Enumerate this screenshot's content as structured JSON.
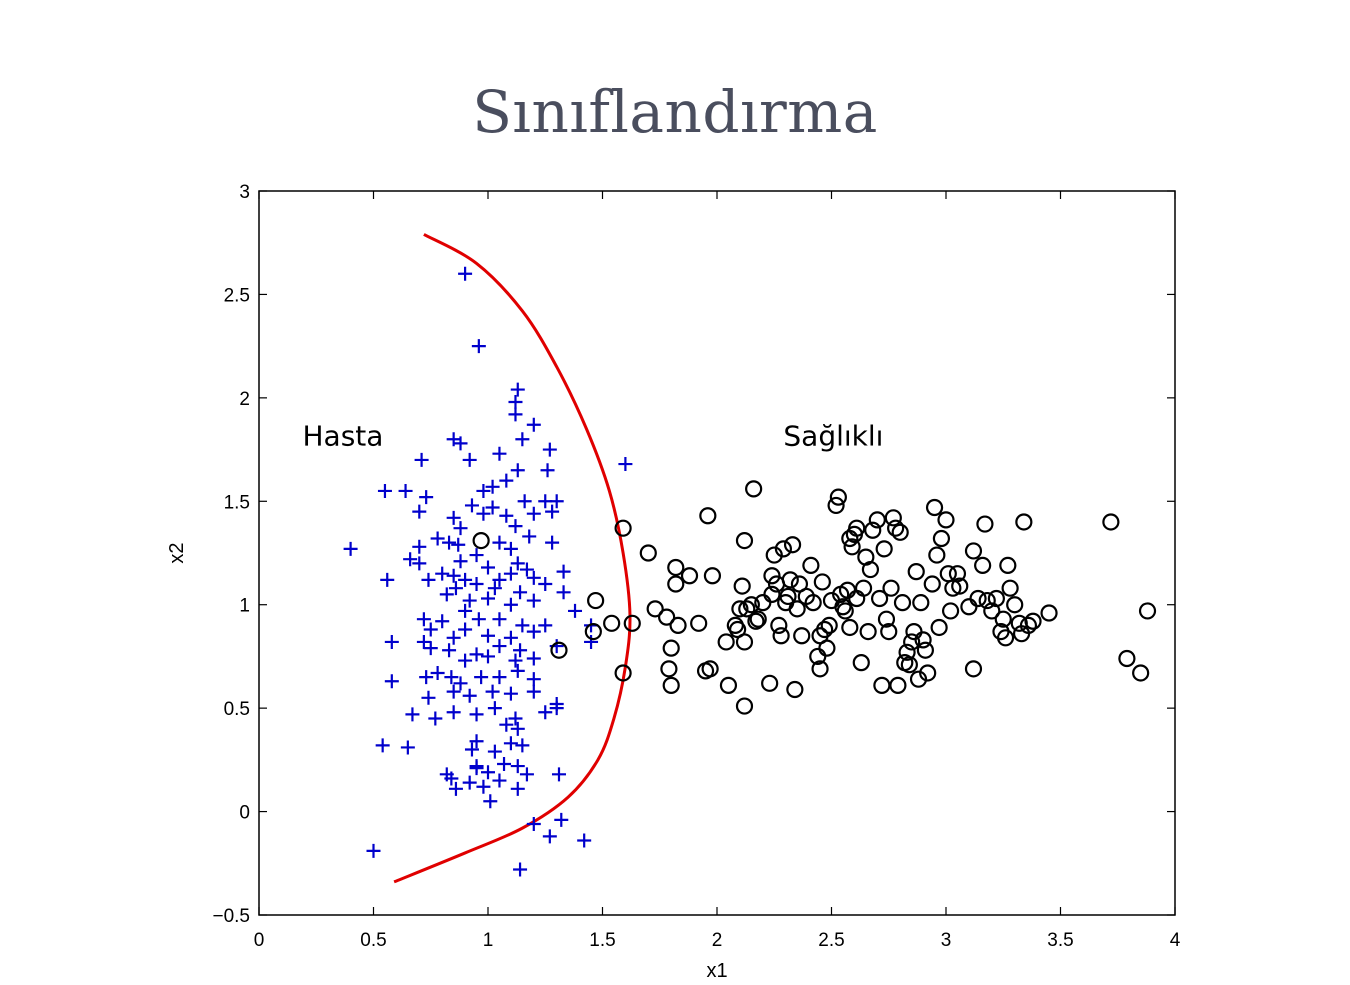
{
  "slide": {
    "title": "Sınıflandırma"
  },
  "chart_data": {
    "type": "scatter",
    "title": "",
    "xlabel": "x1",
    "ylabel": "x2",
    "xlim": [
      0,
      4
    ],
    "ylim": [
      -0.5,
      3
    ],
    "xticks": [
      0,
      0.5,
      1,
      1.5,
      2,
      2.5,
      3,
      3.5,
      4
    ],
    "yticks": [
      -0.5,
      0,
      0.5,
      1,
      1.5,
      2,
      2.5,
      3
    ],
    "xtick_labels": [
      "0",
      "0.5",
      "1",
      "1.5",
      "2",
      "2.5",
      "3",
      "3.5",
      "4"
    ],
    "ytick_labels": [
      "−0.5",
      "0",
      "0.5",
      "1",
      "1.5",
      "2",
      "2.5",
      "3"
    ],
    "grid": false,
    "annotations": [
      {
        "text": "Hasta",
        "x": 0.19,
        "y": 1.77
      },
      {
        "text": "Sağlıklı",
        "x": 2.29,
        "y": 1.77
      }
    ],
    "series": [
      {
        "marker": "plus",
        "color": "#0000cc",
        "points": [
          [
            0.9,
            2.6
          ],
          [
            0.96,
            2.25
          ],
          [
            1.13,
            2.04
          ],
          [
            1.12,
            1.98
          ],
          [
            1.12,
            1.92
          ],
          [
            1.2,
            1.87
          ],
          [
            0.85,
            1.8
          ],
          [
            0.88,
            1.78
          ],
          [
            1.15,
            1.8
          ],
          [
            1.27,
            1.75
          ],
          [
            1.26,
            1.65
          ],
          [
            1.05,
            1.73
          ],
          [
            1.13,
            1.65
          ],
          [
            0.92,
            1.7
          ],
          [
            0.71,
            1.7
          ],
          [
            1.6,
            1.68
          ],
          [
            0.55,
            1.55
          ],
          [
            0.64,
            1.55
          ],
          [
            0.73,
            1.52
          ],
          [
            0.98,
            1.55
          ],
          [
            1.02,
            1.57
          ],
          [
            1.08,
            1.6
          ],
          [
            1.25,
            1.5
          ],
          [
            1.3,
            1.5
          ],
          [
            0.93,
            1.48
          ],
          [
            1.02,
            1.47
          ],
          [
            1.16,
            1.5
          ],
          [
            1.28,
            1.45
          ],
          [
            0.7,
            1.45
          ],
          [
            0.85,
            1.42
          ],
          [
            0.98,
            1.44
          ],
          [
            1.08,
            1.43
          ],
          [
            1.2,
            1.44
          ],
          [
            0.88,
            1.37
          ],
          [
            1.12,
            1.38
          ],
          [
            1.18,
            1.33
          ],
          [
            0.4,
            1.27
          ],
          [
            0.7,
            1.28
          ],
          [
            0.78,
            1.32
          ],
          [
            0.83,
            1.3
          ],
          [
            0.87,
            1.29
          ],
          [
            0.95,
            1.24
          ],
          [
            1.05,
            1.3
          ],
          [
            1.1,
            1.27
          ],
          [
            1.28,
            1.3
          ],
          [
            0.66,
            1.22
          ],
          [
            0.7,
            1.2
          ],
          [
            0.88,
            1.21
          ],
          [
            1.0,
            1.18
          ],
          [
            1.13,
            1.2
          ],
          [
            1.17,
            1.17
          ],
          [
            0.56,
            1.12
          ],
          [
            0.74,
            1.12
          ],
          [
            0.8,
            1.15
          ],
          [
            0.85,
            1.14
          ],
          [
            0.9,
            1.12
          ],
          [
            1.05,
            1.12
          ],
          [
            1.1,
            1.15
          ],
          [
            1.2,
            1.13
          ],
          [
            1.25,
            1.1
          ],
          [
            1.33,
            1.16
          ],
          [
            0.86,
            1.08
          ],
          [
            0.95,
            1.1
          ],
          [
            1.03,
            1.08
          ],
          [
            1.14,
            1.06
          ],
          [
            1.33,
            1.06
          ],
          [
            0.82,
            1.05
          ],
          [
            0.92,
            1.02
          ],
          [
            1.0,
            1.03
          ],
          [
            1.1,
            1.0
          ],
          [
            1.2,
            1.02
          ],
          [
            1.38,
            0.97
          ],
          [
            0.72,
            0.93
          ],
          [
            0.75,
            0.88
          ],
          [
            0.8,
            0.92
          ],
          [
            0.9,
            0.97
          ],
          [
            0.96,
            0.93
          ],
          [
            1.05,
            0.93
          ],
          [
            1.15,
            0.9
          ],
          [
            1.25,
            0.9
          ],
          [
            1.45,
            0.9
          ],
          [
            0.58,
            0.82
          ],
          [
            0.72,
            0.82
          ],
          [
            0.85,
            0.84
          ],
          [
            0.9,
            0.88
          ],
          [
            1.0,
            0.85
          ],
          [
            1.1,
            0.84
          ],
          [
            1.2,
            0.87
          ],
          [
            1.3,
            0.8
          ],
          [
            0.75,
            0.79
          ],
          [
            0.83,
            0.78
          ],
          [
            0.95,
            0.76
          ],
          [
            1.05,
            0.8
          ],
          [
            1.14,
            0.78
          ],
          [
            1.45,
            0.82
          ],
          [
            0.9,
            0.73
          ],
          [
            1.0,
            0.75
          ],
          [
            1.12,
            0.73
          ],
          [
            1.2,
            0.74
          ],
          [
            0.58,
            0.63
          ],
          [
            0.73,
            0.65
          ],
          [
            0.78,
            0.67
          ],
          [
            0.84,
            0.65
          ],
          [
            0.88,
            0.62
          ],
          [
            0.97,
            0.65
          ],
          [
            1.05,
            0.65
          ],
          [
            1.13,
            0.68
          ],
          [
            1.2,
            0.64
          ],
          [
            0.74,
            0.55
          ],
          [
            0.85,
            0.58
          ],
          [
            0.92,
            0.56
          ],
          [
            1.02,
            0.58
          ],
          [
            1.1,
            0.57
          ],
          [
            1.2,
            0.58
          ],
          [
            1.3,
            0.52
          ],
          [
            0.67,
            0.47
          ],
          [
            0.77,
            0.45
          ],
          [
            0.85,
            0.48
          ],
          [
            0.95,
            0.47
          ],
          [
            1.03,
            0.5
          ],
          [
            1.12,
            0.45
          ],
          [
            1.25,
            0.48
          ],
          [
            1.3,
            0.5
          ],
          [
            1.08,
            0.42
          ],
          [
            1.13,
            0.4
          ],
          [
            0.54,
            0.32
          ],
          [
            0.65,
            0.31
          ],
          [
            0.95,
            0.34
          ],
          [
            0.93,
            0.3
          ],
          [
            1.03,
            0.29
          ],
          [
            1.1,
            0.33
          ],
          [
            1.15,
            0.32
          ],
          [
            0.95,
            0.22
          ],
          [
            1.07,
            0.23
          ],
          [
            1.13,
            0.22
          ],
          [
            1.17,
            0.18
          ],
          [
            1.31,
            0.18
          ],
          [
            0.82,
            0.18
          ],
          [
            0.84,
            0.16
          ],
          [
            0.92,
            0.14
          ],
          [
            0.86,
            0.11
          ],
          [
            0.98,
            0.12
          ],
          [
            1.05,
            0.15
          ],
          [
            1.0,
            0.19
          ],
          [
            1.13,
            0.11
          ],
          [
            0.95,
            0.21
          ],
          [
            1.01,
            0.05
          ],
          [
            1.2,
            -0.06
          ],
          [
            1.32,
            -0.04
          ],
          [
            1.27,
            -0.12
          ],
          [
            1.42,
            -0.14
          ],
          [
            0.5,
            -0.19
          ],
          [
            1.14,
            -0.28
          ]
        ]
      },
      {
        "marker": "circle",
        "color": "#000000",
        "points": [
          [
            0.97,
            1.31
          ],
          [
            1.31,
            0.78
          ],
          [
            1.47,
            1.02
          ],
          [
            1.46,
            0.87
          ],
          [
            1.54,
            0.91
          ],
          [
            1.59,
            1.37
          ],
          [
            1.59,
            0.67
          ],
          [
            1.63,
            0.91
          ],
          [
            1.7,
            1.25
          ],
          [
            1.73,
            0.98
          ],
          [
            1.78,
            0.94
          ],
          [
            1.79,
            0.69
          ],
          [
            1.8,
            0.79
          ],
          [
            1.8,
            0.61
          ],
          [
            1.82,
            1.18
          ],
          [
            1.82,
            1.1
          ],
          [
            1.83,
            0.9
          ],
          [
            1.88,
            1.14
          ],
          [
            1.92,
            0.91
          ],
          [
            1.96,
            1.43
          ],
          [
            1.97,
            0.69
          ],
          [
            1.98,
            1.14
          ],
          [
            1.95,
            0.68
          ],
          [
            2.04,
            0.82
          ],
          [
            2.05,
            0.61
          ],
          [
            2.08,
            0.9
          ],
          [
            2.09,
            0.88
          ],
          [
            2.1,
            0.98
          ],
          [
            2.11,
            1.09
          ],
          [
            2.12,
            0.82
          ],
          [
            2.12,
            1.31
          ],
          [
            2.12,
            0.51
          ],
          [
            2.13,
            0.98
          ],
          [
            2.15,
            1.0
          ],
          [
            2.16,
            1.56
          ],
          [
            2.17,
            0.92
          ],
          [
            2.18,
            0.93
          ],
          [
            2.2,
            1.01
          ],
          [
            2.23,
            0.62
          ],
          [
            2.24,
            1.05
          ],
          [
            2.24,
            1.14
          ],
          [
            2.25,
            1.24
          ],
          [
            2.26,
            1.1
          ],
          [
            2.27,
            0.9
          ],
          [
            2.28,
            0.85
          ],
          [
            2.29,
            1.27
          ],
          [
            2.3,
            1.01
          ],
          [
            2.31,
            1.04
          ],
          [
            2.32,
            1.12
          ],
          [
            2.33,
            1.29
          ],
          [
            2.34,
            0.59
          ],
          [
            2.35,
            0.98
          ],
          [
            2.36,
            1.1
          ],
          [
            2.37,
            0.85
          ],
          [
            2.39,
            1.04
          ],
          [
            2.41,
            1.19
          ],
          [
            2.42,
            1.01
          ],
          [
            2.44,
            0.75
          ],
          [
            2.45,
            0.69
          ],
          [
            2.45,
            0.85
          ],
          [
            2.46,
            1.11
          ],
          [
            2.47,
            0.88
          ],
          [
            2.48,
            0.79
          ],
          [
            2.49,
            0.9
          ],
          [
            2.5,
            1.02
          ],
          [
            2.52,
            1.48
          ],
          [
            2.53,
            1.52
          ],
          [
            2.54,
            1.05
          ],
          [
            2.55,
            0.99
          ],
          [
            2.56,
            0.97
          ],
          [
            2.57,
            1.07
          ],
          [
            2.58,
            0.89
          ],
          [
            2.58,
            1.32
          ],
          [
            2.59,
            1.28
          ],
          [
            2.6,
            1.34
          ],
          [
            2.61,
            1.37
          ],
          [
            2.61,
            1.03
          ],
          [
            2.63,
            0.72
          ],
          [
            2.64,
            1.08
          ],
          [
            2.65,
            1.23
          ],
          [
            2.66,
            0.87
          ],
          [
            2.67,
            1.17
          ],
          [
            2.68,
            1.36
          ],
          [
            2.7,
            1.41
          ],
          [
            2.71,
            1.03
          ],
          [
            2.72,
            0.61
          ],
          [
            2.73,
            1.27
          ],
          [
            2.74,
            0.93
          ],
          [
            2.75,
            0.87
          ],
          [
            2.76,
            1.08
          ],
          [
            2.77,
            1.42
          ],
          [
            2.78,
            1.37
          ],
          [
            2.79,
            0.61
          ],
          [
            2.8,
            1.35
          ],
          [
            2.81,
            1.01
          ],
          [
            2.82,
            0.72
          ],
          [
            2.83,
            0.77
          ],
          [
            2.84,
            0.71
          ],
          [
            2.85,
            0.82
          ],
          [
            2.86,
            0.87
          ],
          [
            2.87,
            1.16
          ],
          [
            2.88,
            0.64
          ],
          [
            2.89,
            1.01
          ],
          [
            2.9,
            0.83
          ],
          [
            2.91,
            0.78
          ],
          [
            2.92,
            0.67
          ],
          [
            2.94,
            1.1
          ],
          [
            2.95,
            1.47
          ],
          [
            2.96,
            1.24
          ],
          [
            2.97,
            0.89
          ],
          [
            2.98,
            1.32
          ],
          [
            3.0,
            1.41
          ],
          [
            3.01,
            1.15
          ],
          [
            3.02,
            0.97
          ],
          [
            3.03,
            1.08
          ],
          [
            3.05,
            1.15
          ],
          [
            3.06,
            1.09
          ],
          [
            3.1,
            0.99
          ],
          [
            3.12,
            1.26
          ],
          [
            3.12,
            0.69
          ],
          [
            3.14,
            1.03
          ],
          [
            3.16,
            1.19
          ],
          [
            3.17,
            1.39
          ],
          [
            3.18,
            1.02
          ],
          [
            3.2,
            0.97
          ],
          [
            3.22,
            1.03
          ],
          [
            3.24,
            0.87
          ],
          [
            3.25,
            0.93
          ],
          [
            3.26,
            0.84
          ],
          [
            3.27,
            1.19
          ],
          [
            3.28,
            1.08
          ],
          [
            3.3,
            1.0
          ],
          [
            3.32,
            0.91
          ],
          [
            3.33,
            0.86
          ],
          [
            3.34,
            1.4
          ],
          [
            3.36,
            0.9
          ],
          [
            3.38,
            0.92
          ],
          [
            3.45,
            0.96
          ],
          [
            3.72,
            1.4
          ],
          [
            3.79,
            0.74
          ],
          [
            3.85,
            0.67
          ],
          [
            3.88,
            0.97
          ]
        ]
      }
    ],
    "decision_boundary": {
      "color": "#e00000",
      "points": [
        [
          0.72,
          2.79
        ],
        [
          0.95,
          2.65
        ],
        [
          1.15,
          2.42
        ],
        [
          1.3,
          2.15
        ],
        [
          1.43,
          1.85
        ],
        [
          1.53,
          1.55
        ],
        [
          1.59,
          1.25
        ],
        [
          1.62,
          0.95
        ],
        [
          1.6,
          0.7
        ],
        [
          1.55,
          0.45
        ],
        [
          1.48,
          0.25
        ],
        [
          1.35,
          0.07
        ],
        [
          1.15,
          -0.08
        ],
        [
          0.9,
          -0.2
        ],
        [
          0.59,
          -0.34
        ]
      ]
    }
  }
}
